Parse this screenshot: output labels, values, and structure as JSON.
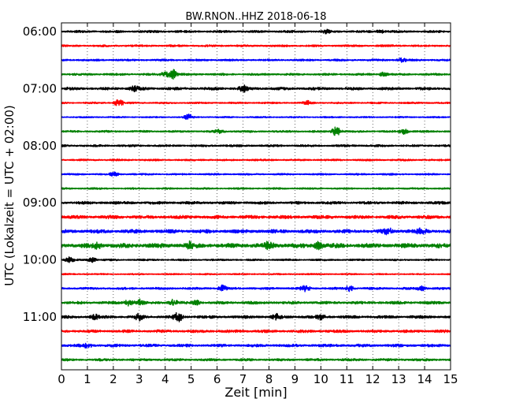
{
  "chart_data": {
    "type": "line",
    "title": "BW.RNON..HHZ 2018-06-18",
    "xlabel": "Zeit  [min]",
    "ylabel": "UTC (Lokalzeit = UTC + 02:00)",
    "xlim": [
      0,
      15
    ],
    "x_ticks": [
      0,
      1,
      2,
      3,
      4,
      5,
      6,
      7,
      8,
      9,
      10,
      11,
      12,
      13,
      14,
      15
    ],
    "grid": "vertical dotted at each minute",
    "row_interval_minutes": 15,
    "y_tick_labels": [
      "06:00",
      "07:00",
      "08:00",
      "09:00",
      "10:00",
      "11:00"
    ],
    "colors": [
      "#000000",
      "#ff0000",
      "#0000ff",
      "#008000"
    ],
    "series": [
      {
        "start": "06:00",
        "color": "#000000",
        "amplitude": 0.16,
        "events": [
          [
            10.2,
            0.2
          ],
          [
            12.3,
            0.2
          ]
        ]
      },
      {
        "start": "06:15",
        "color": "#ff0000",
        "amplitude": 0.14,
        "events": []
      },
      {
        "start": "06:30",
        "color": "#0000ff",
        "amplitude": 0.14,
        "events": [
          [
            13.1,
            0.3
          ]
        ]
      },
      {
        "start": "06:45",
        "color": "#008000",
        "amplitude": 0.15,
        "events": [
          [
            4.3,
            0.7
          ],
          [
            4.0,
            0.3
          ],
          [
            12.4,
            0.3
          ]
        ]
      },
      {
        "start": "07:00",
        "color": "#000000",
        "amplitude": 0.2,
        "events": [
          [
            2.8,
            0.3
          ],
          [
            7.0,
            0.4
          ]
        ]
      },
      {
        "start": "07:15",
        "color": "#ff0000",
        "amplitude": 0.12,
        "events": [
          [
            2.2,
            0.55
          ],
          [
            9.5,
            0.3
          ]
        ]
      },
      {
        "start": "07:30",
        "color": "#0000ff",
        "amplitude": 0.1,
        "events": [
          [
            4.9,
            0.4
          ]
        ]
      },
      {
        "start": "07:45",
        "color": "#008000",
        "amplitude": 0.14,
        "events": [
          [
            10.6,
            0.7
          ],
          [
            13.2,
            0.35
          ],
          [
            6.1,
            0.3
          ]
        ]
      },
      {
        "start": "08:00",
        "color": "#000000",
        "amplitude": 0.15,
        "events": []
      },
      {
        "start": "08:15",
        "color": "#ff0000",
        "amplitude": 0.13,
        "events": []
      },
      {
        "start": "08:30",
        "color": "#0000ff",
        "amplitude": 0.12,
        "events": [
          [
            2.0,
            0.3
          ]
        ]
      },
      {
        "start": "08:45",
        "color": "#008000",
        "amplitude": 0.12,
        "events": []
      },
      {
        "start": "09:00",
        "color": "#000000",
        "amplitude": 0.2,
        "events": []
      },
      {
        "start": "09:15",
        "color": "#ff0000",
        "amplitude": 0.24,
        "events": []
      },
      {
        "start": "09:30",
        "color": "#0000ff",
        "amplitude": 0.26,
        "events": [
          [
            12.6,
            0.4
          ],
          [
            13.9,
            0.35
          ]
        ]
      },
      {
        "start": "09:45",
        "color": "#008000",
        "amplitude": 0.32,
        "events": [
          [
            4.9,
            0.45
          ],
          [
            8.0,
            0.45
          ],
          [
            9.9,
            0.45
          ],
          [
            1.4,
            0.35
          ]
        ]
      },
      {
        "start": "10:00",
        "color": "#000000",
        "amplitude": 0.12,
        "events": [
          [
            0.3,
            0.35
          ],
          [
            1.2,
            0.35
          ]
        ]
      },
      {
        "start": "10:15",
        "color": "#ff0000",
        "amplitude": 0.1,
        "events": []
      },
      {
        "start": "10:30",
        "color": "#0000ff",
        "amplitude": 0.16,
        "events": [
          [
            6.2,
            0.4
          ],
          [
            9.4,
            0.45
          ],
          [
            11.1,
            0.4
          ],
          [
            13.9,
            0.35
          ]
        ]
      },
      {
        "start": "10:45",
        "color": "#008000",
        "amplitude": 0.2,
        "events": [
          [
            2.6,
            0.4
          ],
          [
            3.0,
            0.4
          ],
          [
            4.3,
            0.4
          ],
          [
            5.2,
            0.3
          ]
        ]
      },
      {
        "start": "11:00",
        "color": "#000000",
        "amplitude": 0.2,
        "events": [
          [
            4.5,
            0.65
          ],
          [
            3.0,
            0.4
          ],
          [
            1.3,
            0.3
          ],
          [
            8.3,
            0.35
          ],
          [
            10.0,
            0.3
          ]
        ]
      },
      {
        "start": "11:15",
        "color": "#ff0000",
        "amplitude": 0.2,
        "events": []
      },
      {
        "start": "11:30",
        "color": "#0000ff",
        "amplitude": 0.2,
        "events": [
          [
            1.0,
            0.3
          ]
        ]
      },
      {
        "start": "11:45",
        "color": "#008000",
        "amplitude": 0.17,
        "events": []
      }
    ]
  }
}
